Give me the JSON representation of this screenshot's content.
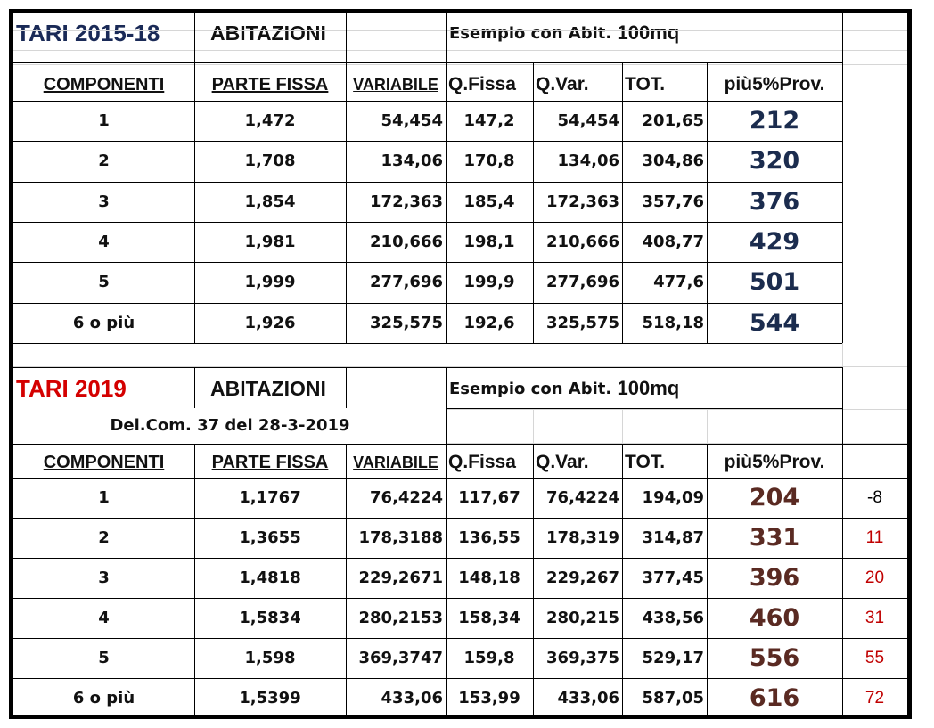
{
  "colors": {
    "title2015": "#1a2a57",
    "title2019": "#d40000",
    "total2015": "#1b2c4e",
    "total2019": "#5a2a22",
    "diff_positive": "#c00000",
    "diff_negative": "#000000"
  },
  "section2015": {
    "title": "TARI 2015-18",
    "type": "ABITAZIONI",
    "example_prefix": "Esempio con Abit.",
    "example_size": "100mq",
    "headers": [
      "COMPONENTI",
      "PARTE FISSA",
      "VARIABILE",
      "Q.Fissa",
      "Q.Var.",
      "TOT.",
      "più5%Prov."
    ],
    "rows": [
      [
        "1",
        "1,472",
        "54,454",
        "147,2",
        "54,454",
        "201,65",
        "212"
      ],
      [
        "2",
        "1,708",
        "134,06",
        "170,8",
        "134,06",
        "304,86",
        "320"
      ],
      [
        "3",
        "1,854",
        "172,363",
        "185,4",
        "172,363",
        "357,76",
        "376"
      ],
      [
        "4",
        "1,981",
        "210,666",
        "198,1",
        "210,666",
        "408,77",
        "429"
      ],
      [
        "5",
        "1,999",
        "277,696",
        "199,9",
        "277,696",
        "477,6",
        "501"
      ],
      [
        "6 o più",
        "1,926",
        "325,575",
        "192,6",
        "325,575",
        "518,18",
        "544"
      ]
    ]
  },
  "section2019": {
    "title": "TARI 2019",
    "type": "ABITAZIONI",
    "example_prefix": "Esempio con Abit.",
    "example_size": "100mq",
    "note": "Del.Com. 37 del 28-3-2019",
    "headers": [
      "COMPONENTI",
      "PARTE FISSA",
      "VARIABILE",
      "Q.Fissa",
      "Q.Var.",
      "TOT.",
      "più5%Prov."
    ],
    "rows": [
      [
        "1",
        "1,1767",
        "76,4224",
        "117,67",
        "76,4224",
        "194,09",
        "204",
        "-8"
      ],
      [
        "2",
        "1,3655",
        "178,3188",
        "136,55",
        "178,319",
        "314,87",
        "331",
        "11"
      ],
      [
        "3",
        "1,4818",
        "229,2671",
        "148,18",
        "229,267",
        "377,45",
        "396",
        "20"
      ],
      [
        "4",
        "1,5834",
        "280,2153",
        "158,34",
        "280,215",
        "438,56",
        "460",
        "31"
      ],
      [
        "5",
        "1,598",
        "369,3747",
        "159,8",
        "369,375",
        "529,17",
        "556",
        "55"
      ],
      [
        "6 o più",
        "1,5399",
        "433,06",
        "153,99",
        "433,06",
        "587,05",
        "616",
        "72"
      ]
    ]
  }
}
